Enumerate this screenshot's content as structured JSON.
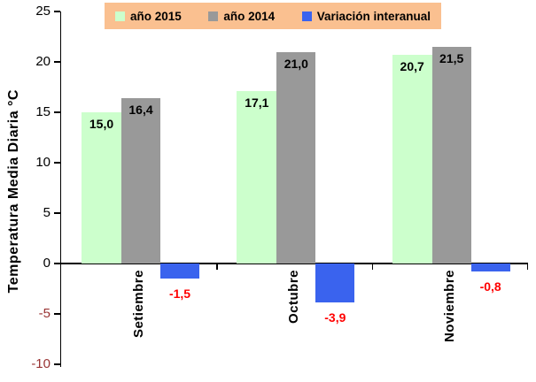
{
  "chart_data": {
    "type": "bar",
    "title": "",
    "ylabel": "Temperatura Media Diaria °C",
    "xlabel": "",
    "ylim": [
      -10,
      25
    ],
    "ytick_step": 5,
    "yticks": [
      "25",
      "20",
      "15",
      "10",
      "5",
      "0",
      "-5",
      "-10"
    ],
    "categories": [
      "Setiembre",
      "Octubre",
      "Noviembre"
    ],
    "series": [
      {
        "name": "año 2015",
        "color": "#CCFFCC",
        "values": [
          15.0,
          17.1,
          20.7
        ],
        "labels": [
          "15,0",
          "17,1",
          "20,7"
        ]
      },
      {
        "name": "año 2014",
        "color": "#999999",
        "values": [
          16.4,
          21.0,
          21.5
        ],
        "labels": [
          "16,4",
          "21,0",
          "21,5"
        ]
      },
      {
        "name": "Variación interanual",
        "color": "#3A63EE",
        "values": [
          -1.5,
          -3.9,
          -0.8
        ],
        "labels": [
          "-1,5",
          "-3,9",
          "-0,8"
        ]
      }
    ],
    "legend_position": "top",
    "grid": false,
    "colors": {
      "legend_bg": "#FAC090",
      "axis": "#000000",
      "positive_tick_label": "#000000",
      "negative_tick_label": "#993333",
      "negative_value_label": "#FF0000",
      "positive_value_label": "#000000",
      "background": "#FFFFFF"
    }
  }
}
